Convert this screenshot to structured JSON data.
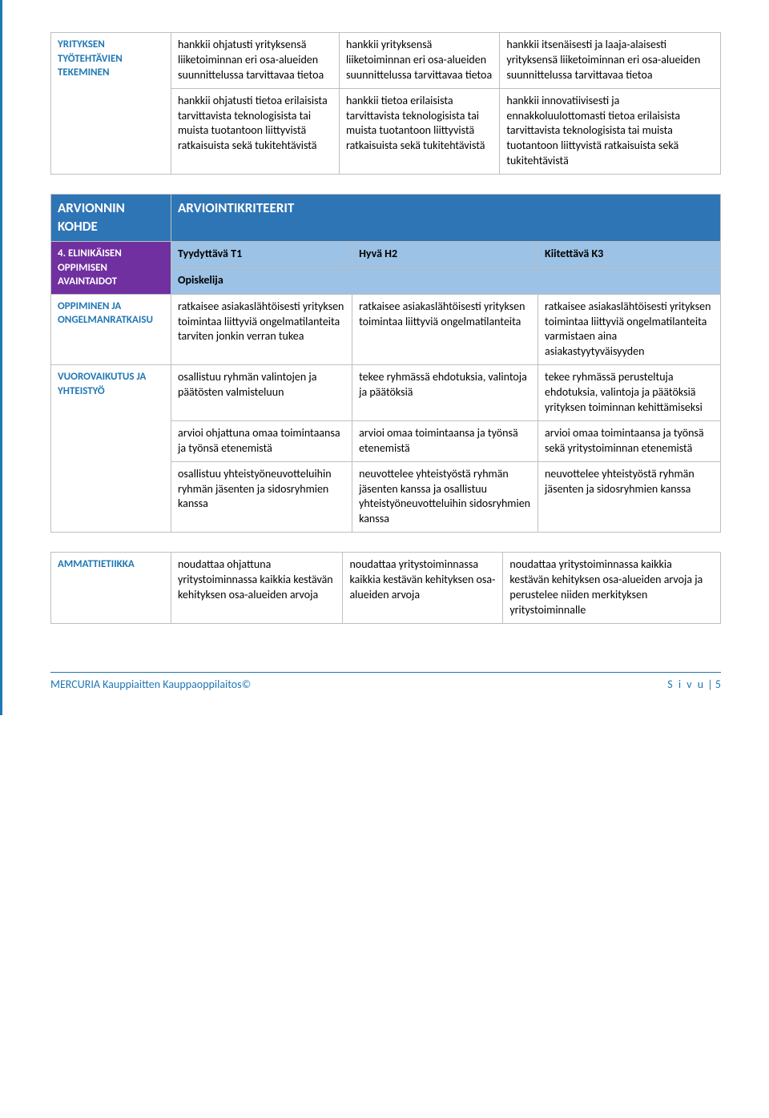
{
  "table1": {
    "rowlabel": "YRITYKSEN TYÖTEHTÄVIEN TEKEMINEN",
    "cells": [
      [
        "hankkii ohjatusti yrityksensä liiketoiminnan eri osa-alueiden suunnittelussa tarvittavaa tietoa",
        "hankkii yrityksensä liiketoiminnan eri osa-alueiden suunnittelussa tarvittavaa tietoa",
        "hankkii itsenäisesti ja laaja-alaisesti yrityksensä liiketoiminnan eri osa-alueiden suunnittelussa tarvittavaa tietoa"
      ],
      [
        "hankkii ohjatusti tietoa erilaisista tarvittavista teknologisista tai muista tuotantoon liittyvistä ratkaisuista sekä tukitehtävistä",
        "hankkii tietoa erilaisista tarvittavista teknologisista tai muista tuotantoon liittyvistä ratkaisuista sekä tukitehtävistä",
        "hankkii innovatiivisesti ja ennakkoluulottomasti tietoa erilaisista tarvittavista teknologisista tai muista tuotantoon liittyvistä ratkaisuista sekä tukitehtävistä"
      ]
    ]
  },
  "table2": {
    "header": {
      "left": "ARVIONNIN KOHDE",
      "right": "ARVIOINTIKRITEERIT"
    },
    "sublabel": "4. ELINIKÄISEN OPPIMISEN AVAINTAIDOT",
    "levels": {
      "t1": "Tyydyttävä T1",
      "h2": "Hyvä H2",
      "k3": "Kiitettävä K3"
    },
    "opiskelija": "Opiskelija",
    "rows": [
      {
        "label": "OPPIMINEN JA ONGELMANRATKAISU",
        "cells": [
          [
            "ratkaisee asiakaslähtöisesti yrityksen toimintaa liittyviä ongelmatilanteita tarviten jonkin verran tukea",
            "ratkaisee asiakaslähtöisesti yrityksen toimintaa liittyviä ongelmatilanteita",
            "ratkaisee asiakaslähtöisesti yrityksen toimintaa liittyviä ongelmatilanteita varmistaen aina asiakastyytyväisyyden"
          ]
        ]
      },
      {
        "label": "VUOROVAIKUTUS JA YHTEISTYÖ",
        "cells": [
          [
            "osallistuu ryhmän valintojen ja päätösten valmisteluun",
            "tekee ryhmässä ehdotuksia, valintoja ja päätöksiä",
            "tekee ryhmässä perusteltuja ehdotuksia, valintoja ja päätöksiä yrityksen toiminnan kehittämiseksi"
          ],
          [
            "arvioi ohjattuna omaa toimintaansa ja työnsä etenemistä",
            "arvioi omaa toimintaansa ja työnsä etenemistä",
            "arvioi omaa toimintaansa ja työnsä sekä yritystoiminnan etenemistä"
          ],
          [
            "osallistuu yhteistyöneuvotteluihin ryhmän jäsenten ja sidosryhmien kanssa",
            "neuvottelee yhteistyöstä ryhmän jäsenten kanssa ja osallistuu yhteistyöneuvotteluihin sidosryhmien kanssa",
            "neuvottelee yhteistyöstä ryhmän jäsenten ja sidosryhmien kanssa"
          ]
        ]
      }
    ]
  },
  "table3": {
    "label": "AMMATTIETIIKKA",
    "cells": [
      [
        "noudattaa ohjattuna yritystoiminnassa kaikkia kestävän kehityksen osa-alueiden arvoja",
        "noudattaa yritystoiminnassa kaikkia kestävän kehityksen osa-alueiden arvoja",
        "noudattaa yritystoiminnassa kaikkia kestävän kehityksen osa-alueiden arvoja ja perustelee niiden merkityksen yritystoiminnalle"
      ]
    ]
  },
  "footer": {
    "org": "MERCURIA Kauppiaitten Kauppaoppilaitos©",
    "page_label": "S i v u",
    "page_num": "| 5"
  }
}
